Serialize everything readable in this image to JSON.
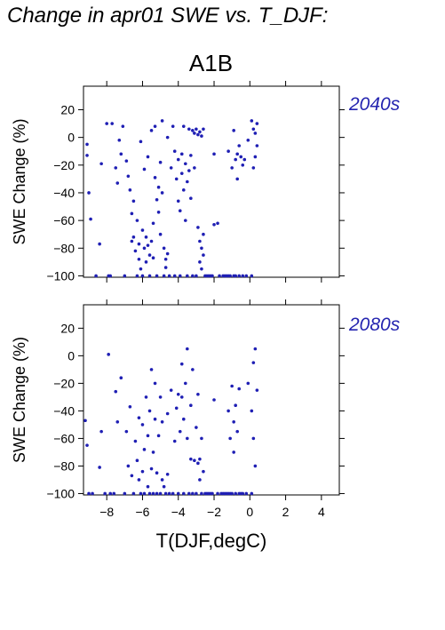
{
  "figure": {
    "title": "Change in apr01 SWE vs. T_DJF:",
    "scenario": "A1B",
    "xlabel": "T(DJF,degC)",
    "colors": {
      "points": "#1f1fb4",
      "period_label": "#2525b0",
      "frame": "#000000"
    }
  },
  "chart_data": [
    {
      "type": "scatter",
      "panel": "2040s",
      "title": "",
      "xlabel": "",
      "ylabel": "SWE Change (%)",
      "xlim": [
        -9.3,
        5
      ],
      "ylim": [
        -101,
        37
      ],
      "xticks": [
        -8,
        -6,
        -4,
        -2,
        0,
        2,
        4
      ],
      "yticks": [
        20,
        0,
        -20,
        -40,
        -60,
        -80,
        -100
      ],
      "points": [
        [
          -9.1,
          -5
        ],
        [
          -9.1,
          -13
        ],
        [
          -9.0,
          -40
        ],
        [
          -8.9,
          -59
        ],
        [
          -8.6,
          -100
        ],
        [
          -8.4,
          -77
        ],
        [
          -8.3,
          -19
        ],
        [
          -8.0,
          10
        ],
        [
          -7.9,
          -100
        ],
        [
          -7.8,
          -100
        ],
        [
          -7.7,
          10
        ],
        [
          -7.5,
          -22
        ],
        [
          -7.4,
          -33
        ],
        [
          -7.3,
          -2
        ],
        [
          -7.2,
          -12
        ],
        [
          -7.1,
          8
        ],
        [
          -7.0,
          -100
        ],
        [
          -6.9,
          -17
        ],
        [
          -6.8,
          -28
        ],
        [
          -6.7,
          -38
        ],
        [
          -6.6,
          -55
        ],
        [
          -6.6,
          -75
        ],
        [
          -6.5,
          -46
        ],
        [
          -6.5,
          -72
        ],
        [
          -6.4,
          -82
        ],
        [
          -6.3,
          -60
        ],
        [
          -6.3,
          -100
        ],
        [
          -6.2,
          -77
        ],
        [
          -6.2,
          -88
        ],
        [
          -6.1,
          -3
        ],
        [
          -6.1,
          -95
        ],
        [
          -6.0,
          -67
        ],
        [
          -6.0,
          -100
        ],
        [
          -5.9,
          -80
        ],
        [
          -5.9,
          -23
        ],
        [
          -5.8,
          -72
        ],
        [
          -5.8,
          -90
        ],
        [
          -5.7,
          -78
        ],
        [
          -5.7,
          -14
        ],
        [
          -5.6,
          -85
        ],
        [
          -5.6,
          -100
        ],
        [
          -5.5,
          -75
        ],
        [
          -5.5,
          5
        ],
        [
          -5.4,
          -62
        ],
        [
          -5.4,
          -87
        ],
        [
          -5.3,
          -29
        ],
        [
          -5.3,
          8
        ],
        [
          -5.2,
          -45
        ],
        [
          -5.2,
          -100
        ],
        [
          -5.1,
          -36
        ],
        [
          -5.1,
          -54
        ],
        [
          -5.0,
          -18
        ],
        [
          -5.0,
          -70
        ],
        [
          -4.9,
          -40
        ],
        [
          -4.9,
          12
        ],
        [
          -4.8,
          -80
        ],
        [
          -4.8,
          -100
        ],
        [
          -4.7,
          -88
        ],
        [
          -4.7,
          -94
        ],
        [
          -4.6,
          -84
        ],
        [
          -4.6,
          0
        ],
        [
          -4.5,
          -100
        ],
        [
          -4.4,
          -22
        ],
        [
          -4.3,
          8
        ],
        [
          -4.2,
          -10
        ],
        [
          -4.2,
          -100
        ],
        [
          -4.1,
          -30
        ],
        [
          -4.0,
          -46
        ],
        [
          -4.0,
          -16
        ],
        [
          -3.9,
          -100
        ],
        [
          -3.9,
          -53
        ],
        [
          -3.8,
          -26
        ],
        [
          -3.8,
          -12
        ],
        [
          -3.7,
          -38
        ],
        [
          -3.7,
          8
        ],
        [
          -3.6,
          -19
        ],
        [
          -3.6,
          -60
        ],
        [
          -3.5,
          -32
        ],
        [
          -3.5,
          -100
        ],
        [
          -3.4,
          -24
        ],
        [
          -3.4,
          6
        ],
        [
          -3.3,
          -44
        ],
        [
          -3.3,
          -13
        ],
        [
          -3.2,
          5
        ],
        [
          -3.2,
          -100
        ],
        [
          -3.1,
          3
        ],
        [
          -3.1,
          -22
        ],
        [
          -3.0,
          6
        ],
        [
          -3.0,
          -100
        ],
        [
          -2.9,
          2
        ],
        [
          -2.9,
          -65
        ],
        [
          -2.8,
          -75
        ],
        [
          -2.8,
          4
        ],
        [
          -2.8,
          -90
        ],
        [
          -2.7,
          -80
        ],
        [
          -2.7,
          1
        ],
        [
          -2.7,
          -95
        ],
        [
          -2.6,
          -70
        ],
        [
          -2.6,
          -85
        ],
        [
          -2.6,
          6
        ],
        [
          -2.5,
          -100
        ],
        [
          -2.4,
          -100
        ],
        [
          -2.3,
          -100
        ],
        [
          -2.2,
          -100
        ],
        [
          -2.1,
          -100
        ],
        [
          -2.0,
          -12
        ],
        [
          -2.0,
          -63
        ],
        [
          -1.8,
          -62
        ],
        [
          -1.7,
          -100
        ],
        [
          -1.5,
          -100
        ],
        [
          -1.4,
          -100
        ],
        [
          -1.3,
          -100
        ],
        [
          -1.2,
          -100
        ],
        [
          -1.1,
          -100
        ],
        [
          -1.2,
          -10
        ],
        [
          -1.0,
          -22
        ],
        [
          -0.9,
          -100
        ],
        [
          -0.9,
          5
        ],
        [
          -0.8,
          -16
        ],
        [
          -0.8,
          -100
        ],
        [
          -0.7,
          -30
        ],
        [
          -0.7,
          -12
        ],
        [
          -0.6,
          -6
        ],
        [
          -0.6,
          -100
        ],
        [
          -0.5,
          -14
        ],
        [
          -0.4,
          -20
        ],
        [
          -0.4,
          -100
        ],
        [
          -0.3,
          -16
        ],
        [
          -0.2,
          -100
        ],
        [
          -0.1,
          -2
        ],
        [
          0.1,
          12
        ],
        [
          0.1,
          -100
        ],
        [
          0.2,
          6
        ],
        [
          0.2,
          -22
        ],
        [
          0.3,
          -14
        ],
        [
          0.3,
          3
        ],
        [
          0.4,
          -6
        ],
        [
          0.4,
          10
        ]
      ]
    },
    {
      "type": "scatter",
      "panel": "2080s",
      "title": "",
      "xlabel": "T(DJF,degC)",
      "ylabel": "SWE Change (%)",
      "xlim": [
        -9.3,
        5
      ],
      "ylim": [
        -101,
        37
      ],
      "xticks": [
        -8,
        -6,
        -4,
        -2,
        0,
        2,
        4
      ],
      "yticks": [
        20,
        0,
        -20,
        -40,
        -60,
        -80,
        -100
      ],
      "points": [
        [
          -9.2,
          -47
        ],
        [
          -9.1,
          -65
        ],
        [
          -9.0,
          -100
        ],
        [
          -8.8,
          -100
        ],
        [
          -8.4,
          -81
        ],
        [
          -8.3,
          -55
        ],
        [
          -8.1,
          -100
        ],
        [
          -7.9,
          1
        ],
        [
          -7.8,
          -100
        ],
        [
          -7.6,
          -100
        ],
        [
          -7.5,
          -26
        ],
        [
          -7.4,
          -48
        ],
        [
          -7.2,
          -16
        ],
        [
          -7.0,
          -100
        ],
        [
          -6.9,
          -55
        ],
        [
          -6.8,
          -80
        ],
        [
          -6.7,
          -37
        ],
        [
          -6.6,
          -87
        ],
        [
          -6.5,
          -100
        ],
        [
          -6.4,
          -62
        ],
        [
          -6.3,
          -76
        ],
        [
          -6.2,
          -45
        ],
        [
          -6.2,
          -90
        ],
        [
          -6.1,
          -100
        ],
        [
          -6.0,
          -50
        ],
        [
          -6.0,
          -84
        ],
        [
          -5.9,
          -68
        ],
        [
          -5.9,
          -100
        ],
        [
          -5.8,
          -30
        ],
        [
          -5.7,
          -58
        ],
        [
          -5.7,
          -95
        ],
        [
          -5.6,
          -40
        ],
        [
          -5.6,
          -100
        ],
        [
          -5.5,
          -82
        ],
        [
          -5.5,
          -10
        ],
        [
          -5.4,
          -70
        ],
        [
          -5.4,
          -100
        ],
        [
          -5.3,
          -46
        ],
        [
          -5.3,
          -20
        ],
        [
          -5.2,
          -85
        ],
        [
          -5.2,
          -100
        ],
        [
          -5.1,
          -58
        ],
        [
          -5.0,
          -30
        ],
        [
          -5.0,
          -100
        ],
        [
          -4.9,
          -90
        ],
        [
          -4.9,
          -48
        ],
        [
          -4.8,
          -95
        ],
        [
          -4.7,
          -100
        ],
        [
          -4.6,
          -42
        ],
        [
          -4.6,
          -86
        ],
        [
          -4.5,
          -100
        ],
        [
          -4.4,
          -25
        ],
        [
          -4.3,
          -100
        ],
        [
          -4.2,
          -62
        ],
        [
          -4.1,
          -38
        ],
        [
          -4.0,
          -28
        ],
        [
          -4.0,
          -100
        ],
        [
          -3.9,
          -55
        ],
        [
          -3.8,
          -30
        ],
        [
          -3.8,
          -6
        ],
        [
          -3.7,
          -46
        ],
        [
          -3.7,
          -100
        ],
        [
          -3.6,
          -20
        ],
        [
          -3.5,
          -60
        ],
        [
          -3.5,
          5
        ],
        [
          -3.4,
          -100
        ],
        [
          -3.3,
          -36
        ],
        [
          -3.3,
          -75
        ],
        [
          -3.2,
          -10
        ],
        [
          -3.2,
          -100
        ],
        [
          -3.1,
          -76
        ],
        [
          -3.0,
          -52
        ],
        [
          -3.0,
          -100
        ],
        [
          -2.9,
          -78
        ],
        [
          -2.9,
          -28
        ],
        [
          -2.8,
          -90
        ],
        [
          -2.8,
          -75
        ],
        [
          -2.7,
          -60
        ],
        [
          -2.7,
          -100
        ],
        [
          -2.6,
          -84
        ],
        [
          -2.5,
          -100
        ],
        [
          -2.4,
          -100
        ],
        [
          -2.3,
          -100
        ],
        [
          -2.2,
          -100
        ],
        [
          -2.1,
          -100
        ],
        [
          -2.0,
          -32
        ],
        [
          -1.8,
          -100
        ],
        [
          -1.6,
          -100
        ],
        [
          -1.5,
          -100
        ],
        [
          -1.4,
          -100
        ],
        [
          -1.3,
          -100
        ],
        [
          -1.2,
          -100
        ],
        [
          -1.1,
          -100
        ],
        [
          -1.2,
          -40
        ],
        [
          -1.1,
          -60
        ],
        [
          -1.0,
          -22
        ],
        [
          -1.0,
          -100
        ],
        [
          -0.9,
          -48
        ],
        [
          -0.9,
          -70
        ],
        [
          -0.8,
          -36
        ],
        [
          -0.8,
          -100
        ],
        [
          -0.7,
          -55
        ],
        [
          -0.6,
          -24
        ],
        [
          -0.6,
          -100
        ],
        [
          -0.5,
          -100
        ],
        [
          -0.4,
          -100
        ],
        [
          -0.2,
          -100
        ],
        [
          -0.1,
          -20
        ],
        [
          0.1,
          -100
        ],
        [
          0.1,
          -40
        ],
        [
          0.2,
          -60
        ],
        [
          0.2,
          -5
        ],
        [
          0.3,
          -80
        ],
        [
          0.3,
          5
        ],
        [
          0.4,
          -25
        ]
      ]
    }
  ]
}
